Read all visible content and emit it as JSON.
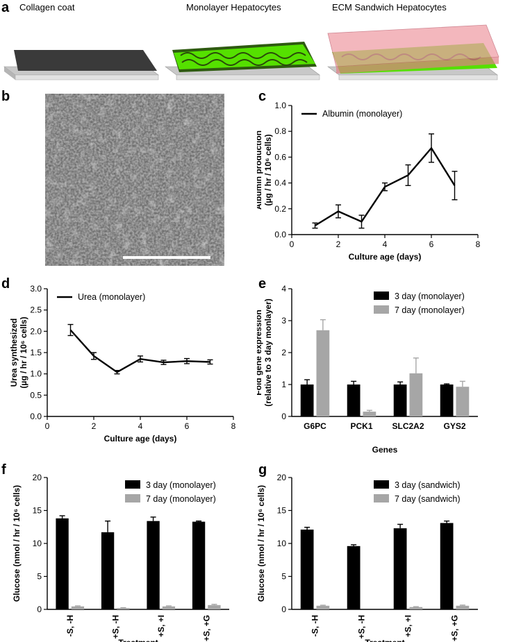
{
  "panel_a": {
    "letter": "a",
    "labels": [
      "Collagen coat",
      "Monolayer Hepatocytes",
      "ECM Sandwich Hepatocytes"
    ]
  },
  "panel_b": {
    "letter": "b"
  },
  "colors": {
    "black": "#000000",
    "gray": "#a6a6a6",
    "green": "#55e000",
    "pink": "#f0a0a8"
  },
  "chart_data": [
    {
      "id": "c",
      "letter": "c",
      "type": "line",
      "title": "",
      "xlabel": "Culture age (days)",
      "ylabel_lines": [
        "Albumin production",
        "(µg / hr / 10⁶ cells)"
      ],
      "xlim": [
        0,
        8
      ],
      "ylim": [
        0,
        1.0
      ],
      "xticks": [
        "0",
        "2",
        "4",
        "6",
        "8"
      ],
      "yticks": [
        "0.0",
        "0.2",
        "0.4",
        "0.6",
        "0.8",
        "1.0"
      ],
      "legend": "top-left",
      "series": [
        {
          "name": "Albumin (monolayer)",
          "x": [
            1,
            2,
            3,
            4,
            5,
            6,
            7
          ],
          "y": [
            0.07,
            0.18,
            0.1,
            0.37,
            0.46,
            0.67,
            0.38
          ],
          "err": [
            0.02,
            0.05,
            0.05,
            0.03,
            0.08,
            0.11,
            0.11
          ]
        }
      ]
    },
    {
      "id": "d",
      "letter": "d",
      "type": "line",
      "title": "",
      "xlabel": "Culture age (days)",
      "ylabel_lines": [
        "Urea synthesized",
        "(µg / hr / 10⁶ cells)"
      ],
      "xlim": [
        0,
        8
      ],
      "ylim": [
        0,
        3.0
      ],
      "xticks": [
        "0",
        "2",
        "4",
        "6",
        "8"
      ],
      "yticks": [
        "0.0",
        "0.5",
        "1.0",
        "1.5",
        "2.0",
        "2.5",
        "3.0"
      ],
      "legend": "top-left",
      "series": [
        {
          "name": "Urea (monolayer)",
          "x": [
            1,
            2,
            3,
            4,
            5,
            6,
            7
          ],
          "y": [
            2.03,
            1.42,
            1.04,
            1.35,
            1.27,
            1.3,
            1.28
          ],
          "err": [
            0.13,
            0.08,
            0.04,
            0.07,
            0.05,
            0.06,
            0.05
          ]
        }
      ]
    },
    {
      "id": "e",
      "letter": "e",
      "type": "bar",
      "title": "",
      "xlabel": "Genes",
      "ylabel_lines": [
        "Fold gene expression",
        "(relative to 3 day monlayer)"
      ],
      "ylim": [
        0,
        4
      ],
      "yticks": [
        "0",
        "1",
        "2",
        "3",
        "4"
      ],
      "categories": [
        "G6PC",
        "PCK1",
        "SLC2A2",
        "GYS2"
      ],
      "legend": "top-right",
      "series": [
        {
          "name": "3 day (monolayer)",
          "values": [
            1.0,
            1.0,
            1.0,
            1.0
          ],
          "err": [
            0.15,
            0.1,
            0.08,
            0.02
          ]
        },
        {
          "name": "7 day (monolayer)",
          "values": [
            2.7,
            0.15,
            1.35,
            0.93
          ],
          "err": [
            0.33,
            0.04,
            0.48,
            0.17
          ]
        }
      ]
    },
    {
      "id": "f",
      "letter": "f",
      "type": "bar",
      "title": "",
      "xlabel": "Treatment",
      "ylabel_lines": [
        "Glucose (nmol / hr / 10⁶ cells)"
      ],
      "ylim": [
        0,
        20
      ],
      "yticks": [
        "0",
        "5",
        "10",
        "15",
        "20"
      ],
      "categories": [
        "-S, -H",
        "+S, -H",
        "+S, +I",
        "+S, +G"
      ],
      "legend": "top-right",
      "series": [
        {
          "name": "3 day (monolayer)",
          "values": [
            13.8,
            11.7,
            13.4,
            13.3
          ],
          "err": [
            0.4,
            1.7,
            0.6,
            0.1
          ]
        },
        {
          "name": "7 day (monolayer)",
          "values": [
            0.45,
            0.2,
            0.45,
            0.65
          ],
          "err": [
            0.08,
            0.05,
            0.08,
            0.12
          ]
        }
      ]
    },
    {
      "id": "g",
      "letter": "g",
      "type": "bar",
      "title": "",
      "xlabel": "Treatment",
      "ylabel_lines": [
        "Glucose (nmol / hr / 10⁶ cells)"
      ],
      "ylim": [
        0,
        20
      ],
      "yticks": [
        "0",
        "5",
        "10",
        "15",
        "20"
      ],
      "categories": [
        "-S, -H",
        "+S, -H",
        "+S, +I",
        "+S, +G"
      ],
      "legend": "top-right",
      "series": [
        {
          "name": "3 day (sandwich)",
          "values": [
            12.1,
            9.6,
            12.3,
            13.1
          ],
          "err": [
            0.35,
            0.2,
            0.6,
            0.3
          ]
        },
        {
          "name": "7 day (sandwich)",
          "values": [
            0.55,
            0.0,
            0.35,
            0.55
          ],
          "err": [
            0.08,
            0.0,
            0.06,
            0.1
          ]
        }
      ]
    }
  ]
}
